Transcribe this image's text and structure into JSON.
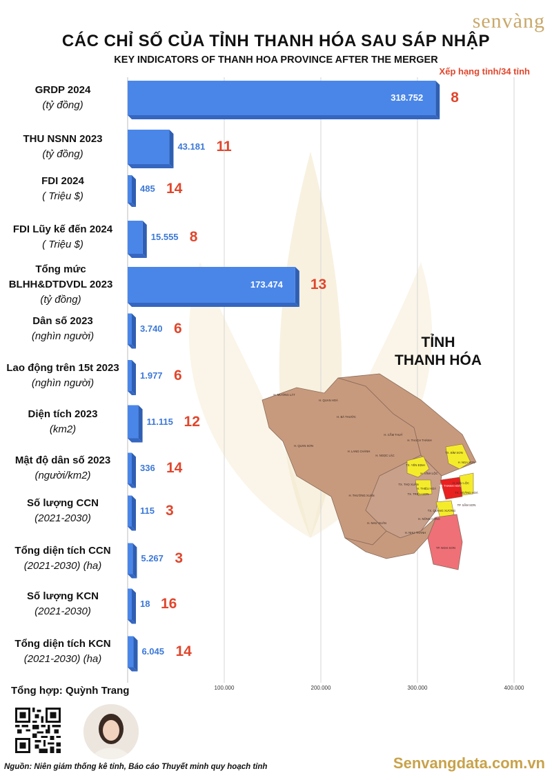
{
  "brand": "senvàng",
  "title": "CÁC CHỈ SỐ CỦA TỈNH THANH HÓA SAU SÁP NHẬP",
  "subtitle": "KEY INDICATORS OF THANH HOA PROVINCE AFTER THE MERGER",
  "rank_caption": "Xếp hạng tỉnh/34 tỉnh",
  "map": {
    "title_line1": "TỈNH",
    "title_line2": "THANH HÓA",
    "district_labels": [
      "H. MƯỜNG LÁT",
      "H. QUAN HOÁ",
      "H. BÁ THƯỚC",
      "H. QUAN SƠN",
      "H. CẨM THUỶ",
      "H. THẠCH THÀNH",
      "H. LANG CHÁNH",
      "H. NGỌC LẶC",
      "TX. BỈM SƠN",
      "H. NGA SƠN",
      "TX. YÊN ĐỊNH",
      "H. VĨNH LỘC",
      "TX. THỌ XUÂN",
      "H. THIỆU HOÁ",
      "H. HẬU LỘC",
      "TX. TRIỆU SƠN",
      "TP. THANH HOÁ",
      "TX. HOẰNG HOÁ",
      "H. THƯỜNG XUÂN",
      "TP. SẦM SƠN",
      "TX. QUẢNG XƯƠNG",
      "H. NÔNG CỐNG",
      "H. NHƯ XUÂN",
      "H. NHƯ THANH",
      "TP. NGHI SƠN"
    ]
  },
  "compiled_by": "Tổng hợp: Quỳnh Trang",
  "source": "Nguồn: Niên giám thống kê tỉnh, Báo cáo Thuyết minh quy hoạch tỉnh",
  "website": "Senvangdata.com.vn",
  "colors": {
    "bar": "#4a86e8",
    "bar_side": "#2f5fb3",
    "rank": "#e0462c",
    "value_out": "#3b78d8",
    "gold": "#c8a24a"
  },
  "chart_data": {
    "type": "bar",
    "orientation": "horizontal",
    "xlim": [
      0,
      400000
    ],
    "xticks": [
      "100.000",
      "200.000",
      "300.000",
      "400.000"
    ],
    "xtick_values": [
      100000,
      200000,
      300000,
      400000
    ],
    "grid": true,
    "series": [
      {
        "name": "Xếp hạng tỉnh/34 tỉnh",
        "values": [
          8,
          11,
          14,
          8,
          13,
          6,
          6,
          12,
          14,
          3,
          3,
          16,
          14
        ]
      }
    ],
    "categories": [
      {
        "name": "GRDP 2024",
        "unit": "(tỷ đồng)",
        "value": 318752,
        "value_label": "318.752",
        "rank": "8"
      },
      {
        "name": "THU NSNN 2023",
        "unit": "(tỷ đồng)",
        "value": 43181,
        "value_label": "43.181",
        "rank": "11"
      },
      {
        "name": "FDI 2024",
        "unit": "( Triệu $)",
        "value": 485,
        "value_label": "485",
        "rank": "14"
      },
      {
        "name": "FDI Lũy kế đến 2024",
        "unit": "( Triệu $)",
        "value": 15555,
        "value_label": "15.555",
        "rank": "8"
      },
      {
        "name": "Tổng mức BLHH&DTDVDL 2023",
        "unit": "(tỷ đồng)",
        "value": 173474,
        "value_label": "173.474",
        "rank": "13"
      },
      {
        "name": "Dân số 2023",
        "unit": "(nghìn người)",
        "value": 3740,
        "value_label": "3.740",
        "rank": "6"
      },
      {
        "name": "Lao động trên 15t 2023",
        "unit": "(nghìn người)",
        "value": 1977,
        "value_label": "1.977",
        "rank": "6"
      },
      {
        "name": "Diện tích 2023",
        "unit": "(km2)",
        "value": 11115,
        "value_label": "11.115",
        "rank": "12"
      },
      {
        "name": "Mật độ dân số 2023",
        "unit": "(người/km2)",
        "value": 336,
        "value_label": "336",
        "rank": "14"
      },
      {
        "name": "Số lượng CCN",
        "unit": "(2021-2030)",
        "value": 115,
        "value_label": "115",
        "rank": "3"
      },
      {
        "name": "Tổng diện tích CCN",
        "unit": "(2021-2030) (ha)",
        "value": 5267,
        "value_label": "5.267",
        "rank": "3"
      },
      {
        "name": "Số lượng KCN",
        "unit": "(2021-2030)",
        "value": 18,
        "value_label": "18",
        "rank": "16"
      },
      {
        "name": "Tổng diện tích KCN",
        "unit": "(2021-2030) (ha)",
        "value": 6045,
        "value_label": "6.045",
        "rank": "14"
      }
    ]
  }
}
